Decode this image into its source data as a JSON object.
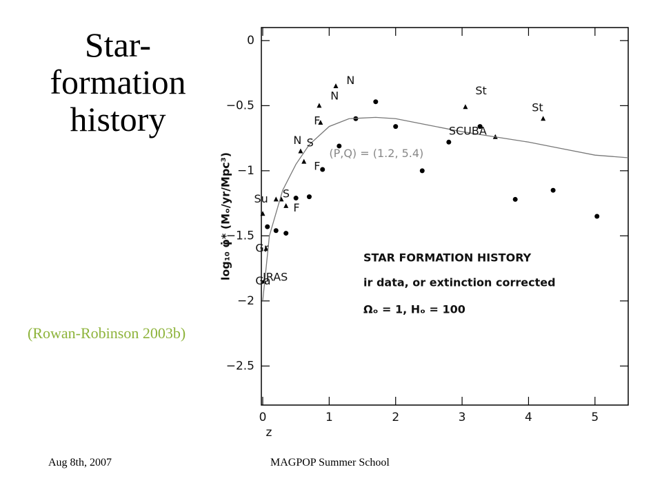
{
  "slide": {
    "title": "Star-formation history",
    "citation": "(Rowan-Robinson 2003b)",
    "footer_left": "Aug 8th, 2007",
    "footer_center": "MAGPOP Summer School"
  },
  "chart_data": {
    "type": "scatter",
    "xlabel": "z",
    "ylabel": "log₁₀ φ̇* (Mₒ/yr/Mpc³)",
    "xlim": [
      0,
      5.5
    ],
    "ylim": [
      -2.8,
      0.1
    ],
    "xticks": [
      0,
      1,
      2,
      3,
      4,
      5
    ],
    "yticks": [
      0,
      {
        "value": -0.5,
        "label": "−0.5"
      },
      {
        "value": -1,
        "label": "−1"
      },
      {
        "value": -1.5,
        "label": "−1.5"
      },
      {
        "value": -2,
        "label": "−2"
      },
      {
        "value": -2.5,
        "label": "−2.5"
      }
    ],
    "series": [
      {
        "marker": "circle",
        "color": "#000000",
        "x": [
          1.7,
          1.4,
          2.0,
          2.8,
          3.27,
          2.4,
          0.9,
          0.7,
          0.5,
          0.07,
          0.2,
          0.35,
          1.15,
          3.8,
          4.37,
          5.03
        ],
        "values": [
          -0.47,
          -0.6,
          -0.66,
          -0.78,
          -0.66,
          -1.0,
          -0.99,
          -1.2,
          -1.21,
          -1.43,
          -1.46,
          -1.48,
          -0.81,
          -1.22,
          -1.15,
          -1.35
        ]
      },
      {
        "marker": "triangle",
        "color": "#000000",
        "x": [
          0.85,
          1.1,
          0.57,
          0.62,
          0.87,
          0.2,
          0.28,
          0.35,
          0.05,
          0.02,
          0.0,
          3.05,
          4.22,
          3.5
        ],
        "values": [
          -0.5,
          -0.35,
          -0.85,
          -0.93,
          -0.63,
          -1.22,
          -1.22,
          -1.27,
          -1.6,
          -1.85,
          -1.33,
          -0.51,
          -0.6,
          -0.74
        ]
      },
      {
        "marker": "line",
        "color": "#777777",
        "x": [
          0,
          0.1,
          0.3,
          0.5,
          0.7,
          1.0,
          1.3,
          1.7,
          2.0,
          2.5,
          3.0,
          3.5,
          4.0,
          4.5,
          5.0,
          5.5
        ],
        "values": [
          -2.0,
          -1.5,
          -1.15,
          -0.95,
          -0.8,
          -0.66,
          -0.6,
          -0.59,
          -0.6,
          -0.65,
          -0.7,
          -0.74,
          -0.78,
          -0.83,
          -0.88,
          -0.9
        ]
      }
    ],
    "annotations": [
      {
        "text": "N",
        "x": 1.02,
        "y": -0.43
      },
      {
        "text": "N",
        "x": 1.26,
        "y": -0.31
      },
      {
        "text": "St",
        "x": 3.2,
        "y": -0.39
      },
      {
        "text": "St",
        "x": 4.05,
        "y": -0.52
      },
      {
        "text": "F",
        "x": 0.77,
        "y": -0.62
      },
      {
        "text": "SCUBA",
        "x": 2.8,
        "y": -0.7
      },
      {
        "text": "N",
        "x": 0.46,
        "y": -0.77
      },
      {
        "text": "S",
        "x": 0.66,
        "y": -0.79
      },
      {
        "text": "F",
        "x": 0.77,
        "y": -0.97
      },
      {
        "text": "(P,Q) = (1.2, 5.4)",
        "x": 1.0,
        "y": -0.87
      },
      {
        "text": "S",
        "x": 0.3,
        "y": -1.18
      },
      {
        "text": "Su",
        "x": -0.13,
        "y": -1.22
      },
      {
        "text": "F",
        "x": 0.46,
        "y": -1.29
      },
      {
        "text": "Gr",
        "x": -0.11,
        "y": -1.6
      },
      {
        "text": "Ga",
        "x": -0.11,
        "y": -1.85
      },
      {
        "text": "IRAS",
        "x": 0.0,
        "y": -1.82
      }
    ],
    "box_text": [
      "STAR FORMATION HISTORY",
      "ir data, or extinction corrected",
      "Ωₒ  = 1, Hₒ = 100"
    ]
  }
}
